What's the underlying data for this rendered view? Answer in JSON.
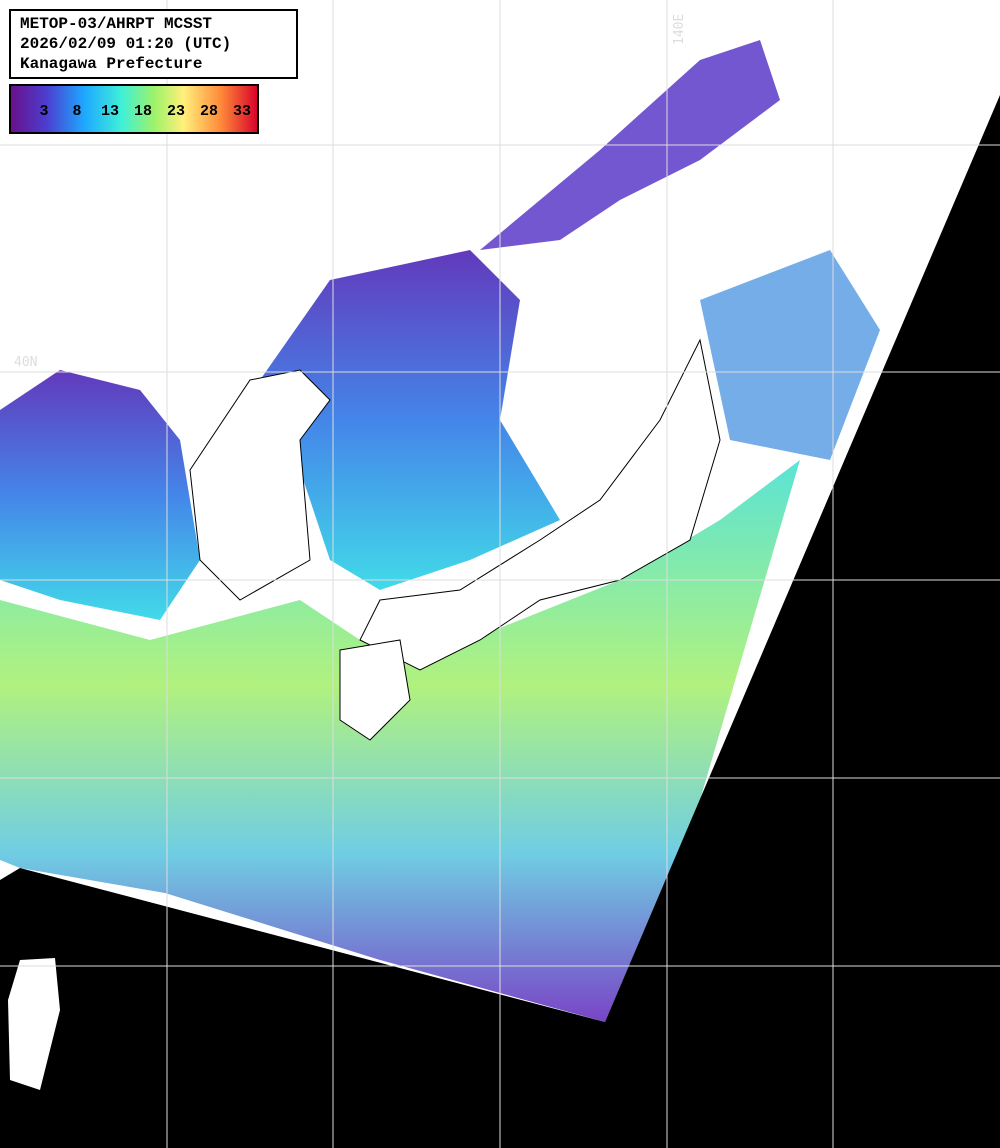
{
  "header": {
    "lines": [
      "METOP-03/AHRPT MCSST",
      "2026/02/09 01:20 (UTC)",
      "Kanagawa Prefecture"
    ]
  },
  "colorbar": {
    "labels": [
      "3",
      "8",
      "13",
      "18",
      "23",
      "28",
      "33"
    ]
  },
  "grid_labels": {
    "latitude": "40N",
    "longitude": "140E"
  }
}
